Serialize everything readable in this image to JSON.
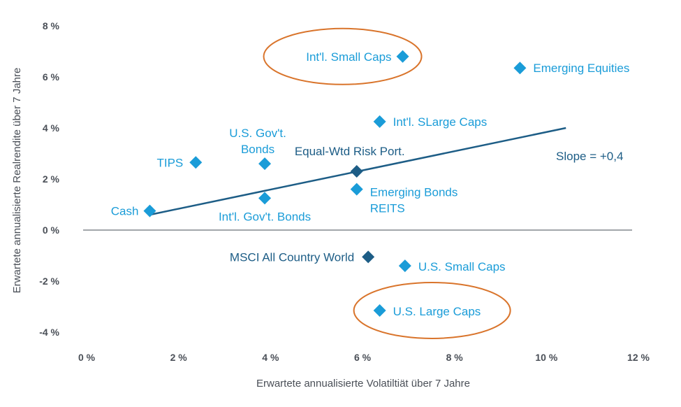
{
  "chart_data": {
    "type": "scatter",
    "title": "",
    "xlabel": "Erwartete annualisierte Volatiltiät über 7 Jahre",
    "ylabel": "Erwartete annualisierte Realrendite über 7 Jahre",
    "xlim": [
      0,
      12
    ],
    "ylim": [
      -4,
      8
    ],
    "x_ticks": [
      {
        "value": 0,
        "label": "0 %"
      },
      {
        "value": 2,
        "label": "2 %"
      },
      {
        "value": 4,
        "label": "4 %"
      },
      {
        "value": 6,
        "label": "6 %"
      },
      {
        "value": 8,
        "label": "8 %"
      },
      {
        "value": 10,
        "label": "10 %"
      },
      {
        "value": 12,
        "label": "12 %"
      }
    ],
    "y_ticks": [
      {
        "value": 8,
        "label": "8 %"
      },
      {
        "value": 6,
        "label": "6 %"
      },
      {
        "value": 4,
        "label": "4 %"
      },
      {
        "value": 2,
        "label": "2 %"
      },
      {
        "value": 0,
        "label": "0 %"
      },
      {
        "value": -2,
        "label": "-2 %"
      },
      {
        "value": -4,
        "label": "-4 %"
      }
    ],
    "points": [
      {
        "name": "cash",
        "label": [
          "Cash"
        ],
        "x": 1.45,
        "y": 0.75,
        "label_side": "left",
        "color": "#1a9cd8"
      },
      {
        "name": "tips",
        "label": [
          "TIPS"
        ],
        "x": 2.45,
        "y": 2.65,
        "label_side": "left",
        "color": "#1a9cd8"
      },
      {
        "name": "us-govt-bonds",
        "label": [
          "U.S. Gov't.",
          "Bonds"
        ],
        "x": 3.95,
        "y": 2.6,
        "label_side": "above",
        "color": "#1a9cd8"
      },
      {
        "name": "intl-govt-bonds",
        "label": [
          "Int'l. Gov't. Bonds"
        ],
        "x": 3.95,
        "y": 1.25,
        "label_side": "below",
        "color": "#1a9cd8"
      },
      {
        "name": "emerging-bonds",
        "label": [
          "Emerging Bonds",
          "REITS"
        ],
        "x": 5.95,
        "y": 1.6,
        "label_side": "right",
        "color": "#1a9cd8"
      },
      {
        "name": "equal-wtd-risk-port",
        "label": [
          "Equal-Wtd Risk Port."
        ],
        "x": 5.95,
        "y": 2.3,
        "label_side": "above",
        "color": "#1d5d86"
      },
      {
        "name": "intl-large-caps",
        "label": [
          "Int'l. SLarge Caps"
        ],
        "x": 6.45,
        "y": 4.25,
        "label_side": "right",
        "color": "#1a9cd8"
      },
      {
        "name": "intl-small-caps",
        "label": [
          "Int'l. Small Caps"
        ],
        "x": 6.95,
        "y": 6.8,
        "label_side": "left",
        "color": "#1a9cd8"
      },
      {
        "name": "emerging-equities",
        "label": [
          "Emerging Equities"
        ],
        "x": 9.5,
        "y": 6.35,
        "label_side": "right",
        "color": "#1a9cd8"
      },
      {
        "name": "msci-acwi",
        "label": [
          "MSCI All Country World"
        ],
        "x": 6.2,
        "y": -1.05,
        "label_side": "left",
        "color": "#1d5d86"
      },
      {
        "name": "us-small-caps",
        "label": [
          "U.S. Small Caps"
        ],
        "x": 7.0,
        "y": -1.4,
        "label_side": "right",
        "color": "#1a9cd8"
      },
      {
        "name": "us-large-caps",
        "label": [
          "U.S. Large Caps"
        ],
        "x": 6.45,
        "y": -3.15,
        "label_side": "right",
        "color": "#1a9cd8"
      }
    ],
    "trend_line": {
      "x": [
        1.45,
        10.5
      ],
      "y": [
        0.6,
        4.0
      ],
      "color": "#1d5d86"
    },
    "annotation": "Slope = +0,4",
    "highlighted": [
      "intl-small-caps",
      "us-large-caps"
    ],
    "highlight_color": "#d9742b"
  }
}
